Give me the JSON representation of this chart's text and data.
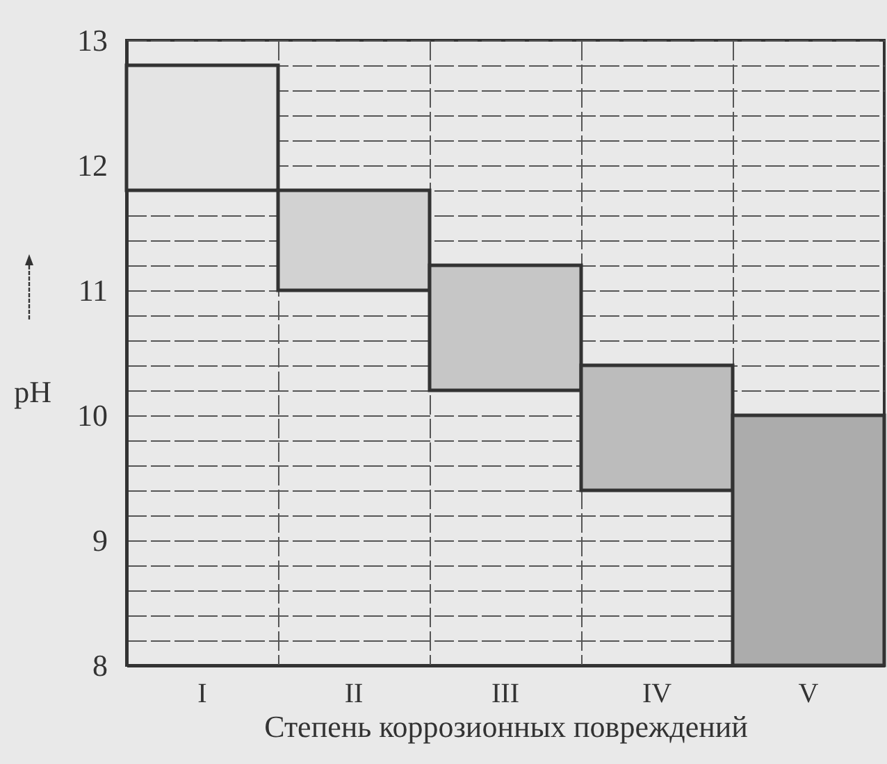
{
  "chart_data": {
    "type": "bar",
    "categories": [
      "I",
      "II",
      "III",
      "IV",
      "V"
    ],
    "base": [
      11.8,
      11.0,
      10.2,
      9.4,
      8
    ],
    "values": [
      1.0,
      0.8,
      1.0,
      1.0,
      2.0
    ],
    "colors": [
      "#e4e4e4",
      "#d2d2d2",
      "#c6c6c6",
      "#bcbcbc",
      "#acacac"
    ],
    "xlabel": "Степень коррозионных повреждений",
    "ylabel": "pH",
    "ylim": [
      8,
      13
    ],
    "yticks": [
      8,
      {
        "value": 8.2,
        "label": null
      },
      {
        "value": 8.4,
        "label": null
      },
      {
        "value": 8.6,
        "label": null
      },
      {
        "value": 8.8,
        "label": null
      },
      9,
      {
        "value": 9.2,
        "label": null
      },
      {
        "value": 9.4,
        "label": null
      },
      {
        "value": 9.6,
        "label": null
      },
      {
        "value": 9.8,
        "label": null
      },
      10,
      {
        "value": 10.2,
        "label": null
      },
      {
        "value": 10.4,
        "label": null
      },
      {
        "value": 10.6,
        "label": null
      },
      {
        "value": 10.8,
        "label": null
      },
      11,
      {
        "value": 11.2,
        "label": null
      },
      {
        "value": 11.4,
        "label": null
      },
      {
        "value": 11.6,
        "label": null
      },
      {
        "value": 11.8,
        "label": null
      },
      12,
      {
        "value": 12.2,
        "label": null
      },
      {
        "value": 12.4,
        "label": null
      },
      {
        "value": 12.6,
        "label": null
      },
      {
        "value": 12.8,
        "label": null
      },
      13
    ],
    "grid": true
  }
}
